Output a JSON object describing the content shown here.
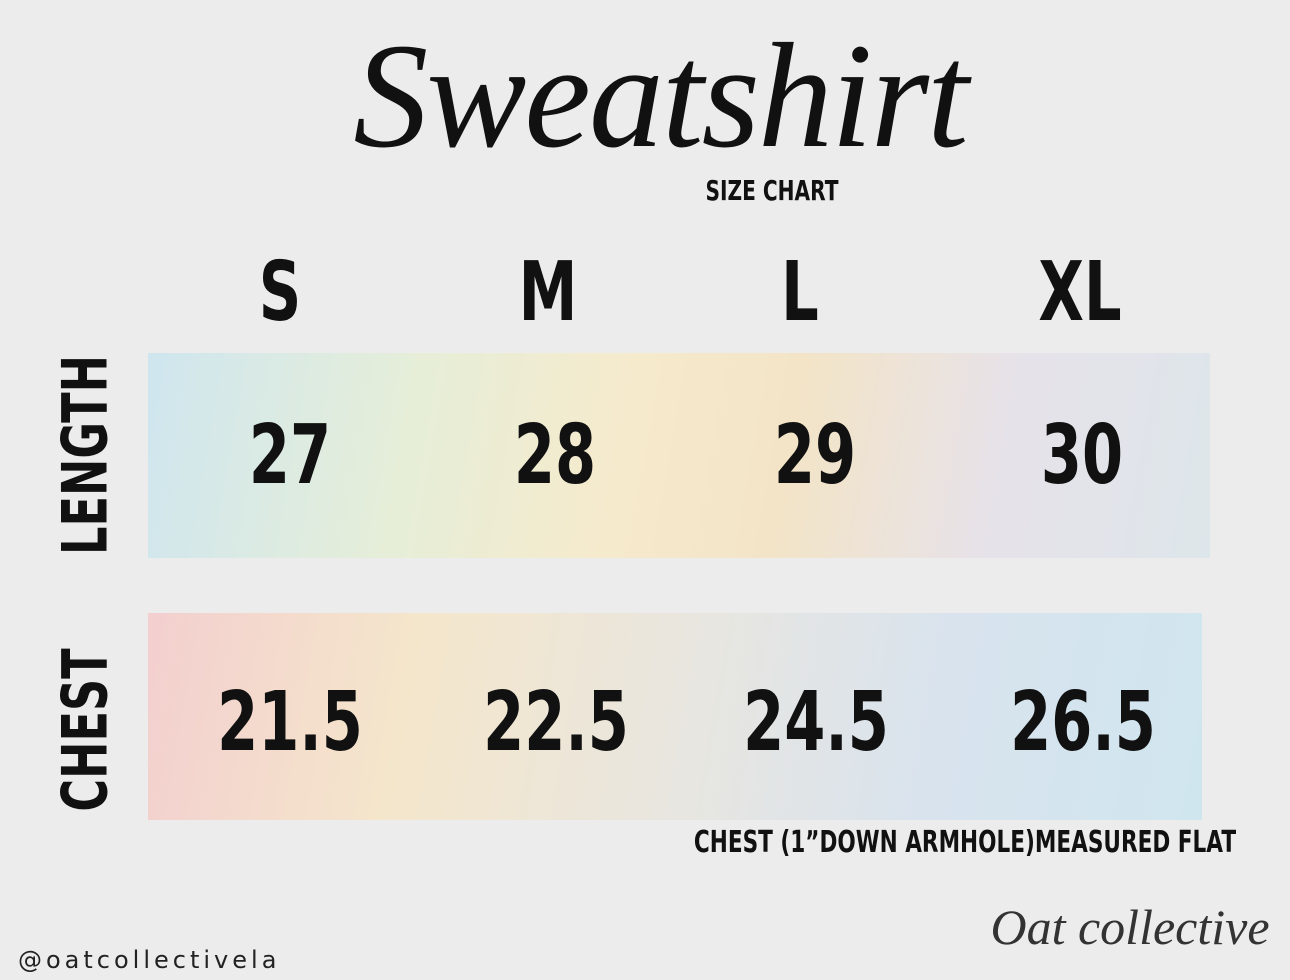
{
  "header": {
    "title": "Sweatshirt",
    "subtitle": "SIZE CHART"
  },
  "table": {
    "columns": [
      "S",
      "M",
      "L",
      "XL"
    ],
    "rows": [
      {
        "label": "LENGTH",
        "values": [
          27,
          28,
          29,
          30
        ]
      },
      {
        "label": "CHEST",
        "values": [
          21.5,
          22.5,
          24.5,
          26.5
        ]
      }
    ],
    "note": "CHEST (1”DOWN ARMHOLE)MEASURED FLAT"
  },
  "footer": {
    "handle": "@oatcollectivela",
    "brand": "Oat collective"
  }
}
